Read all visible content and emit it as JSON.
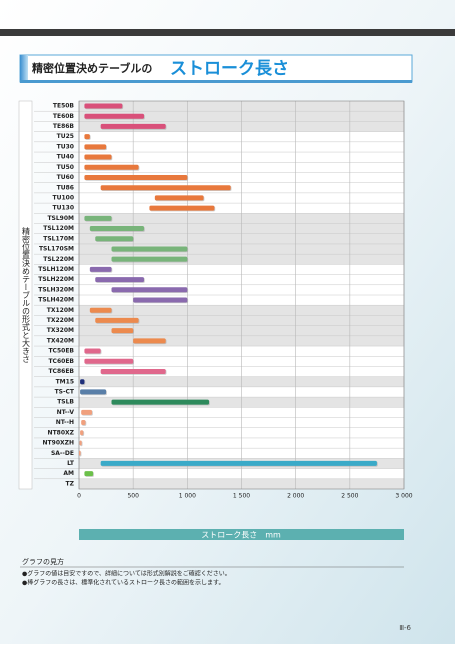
{
  "chart_data": {
    "type": "range_bar",
    "title_prefix": "精密位置決めテーブルの",
    "title": "ストローク長さ",
    "y_label": "精密位置決めテーブルの形式と大きさ",
    "x_label": "ストローク長さ　mm",
    "categories": [
      "TE50B",
      "TE60B",
      "TE86B",
      "TU25",
      "TU30",
      "TU40",
      "TU50",
      "TU60",
      "TU86",
      "TU100",
      "TU130",
      "TSL90M",
      "TSL120M",
      "TSL170M",
      "TSL170SM",
      "TSL220M",
      "TSLH120M",
      "TSLH220M",
      "TSLH320M",
      "TSLH420M",
      "TX120M",
      "TX220M",
      "TX320M",
      "TX420M",
      "TC50EB",
      "TC60EB",
      "TC86EB",
      "TM15",
      "TS-CT",
      "TSLB",
      "NT--V",
      "NT--H",
      "NT80XZ",
      "NT90XZH",
      "SA--DE",
      "LT",
      "AM",
      "TZ"
    ],
    "start": [
      50,
      50,
      200,
      50,
      50,
      50,
      50,
      50,
      200,
      700,
      650,
      50,
      100,
      150,
      300,
      300,
      100,
      150,
      300,
      500,
      100,
      150,
      300,
      500,
      50,
      50,
      200,
      10,
      10,
      300,
      20,
      20,
      10,
      5,
      0,
      200,
      50,
      null
    ],
    "end": [
      400,
      600,
      800,
      100,
      250,
      300,
      550,
      1000,
      1400,
      1150,
      1250,
      300,
      600,
      500,
      1000,
      1000,
      300,
      600,
      1000,
      1000,
      300,
      550,
      500,
      800,
      200,
      500,
      800,
      50,
      250,
      1200,
      120,
      60,
      40,
      25,
      15,
      2750,
      130,
      null
    ],
    "colors": [
      "#d9507a",
      "#d9507a",
      "#d9507a",
      "#e8783c",
      "#e8783c",
      "#e8783c",
      "#e8783c",
      "#e8783c",
      "#e8783c",
      "#e8783c",
      "#e8783c",
      "#78b47a",
      "#78b47a",
      "#78b47a",
      "#78b47a",
      "#78b47a",
      "#8a6aae",
      "#8a6aae",
      "#8a6aae",
      "#8a6aae",
      "#ec8a4e",
      "#ec8a4e",
      "#ec8a4e",
      "#ec8a4e",
      "#e0688c",
      "#e0688c",
      "#e0688c",
      "#1e2f7a",
      "#5a7fa8",
      "#2e8a5c",
      "#f0a07e",
      "#f0a07e",
      "#f0a07e",
      "#f0a07e",
      "#f0a07e",
      "#3aaac8",
      "#6cc04a",
      "#999999"
    ],
    "xlim": [
      0,
      3000
    ],
    "xticks": [
      0,
      500,
      {
        "value": 1000,
        "label": "1 000"
      },
      {
        "value": 1500,
        "label": "1 500"
      },
      {
        "value": 2000,
        "label": "2 000"
      },
      {
        "value": 2500,
        "label": "2 500"
      },
      {
        "value": 3000,
        "label": "3 000"
      }
    ],
    "grid": true
  },
  "notes": {
    "heading": "グラフの見方",
    "items": [
      "●グラフの値は目安ですので、詳細については形式別解説をご確認ください。",
      "●棒グラフの長さは、標準化されているストローク長さの範囲を示します。"
    ]
  },
  "page_number": "Ⅲ-6"
}
